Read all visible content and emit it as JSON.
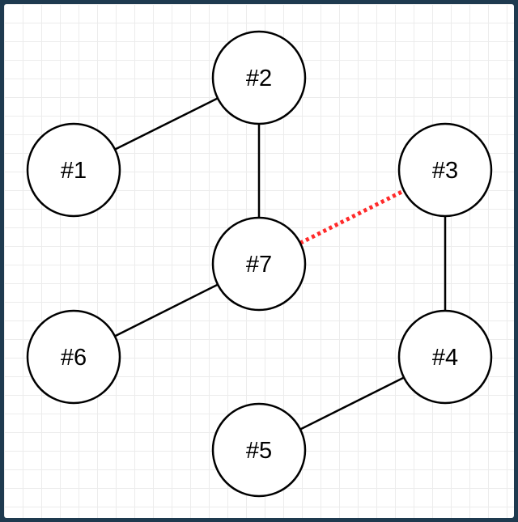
{
  "colors": {
    "background": "#1e3a4f",
    "canvas": "#ffffff",
    "node_fill": "#ffffff",
    "node_stroke": "#000000",
    "edge": "#000000",
    "highlighted_edge": "#ff2a2a"
  },
  "nodes": [
    {
      "id": "n1",
      "label": "#1"
    },
    {
      "id": "n2",
      "label": "#2"
    },
    {
      "id": "n3",
      "label": "#3"
    },
    {
      "id": "n4",
      "label": "#4"
    },
    {
      "id": "n5",
      "label": "#5"
    },
    {
      "id": "n6",
      "label": "#6"
    },
    {
      "id": "n7",
      "label": "#7"
    }
  ],
  "edges": [
    {
      "from": "n1",
      "to": "n2",
      "style": "solid"
    },
    {
      "from": "n2",
      "to": "n7",
      "style": "solid"
    },
    {
      "from": "n7",
      "to": "n6",
      "style": "solid"
    },
    {
      "from": "n7",
      "to": "n3",
      "style": "dotted-highlight"
    },
    {
      "from": "n3",
      "to": "n4",
      "style": "solid"
    },
    {
      "from": "n4",
      "to": "n5",
      "style": "solid"
    }
  ]
}
